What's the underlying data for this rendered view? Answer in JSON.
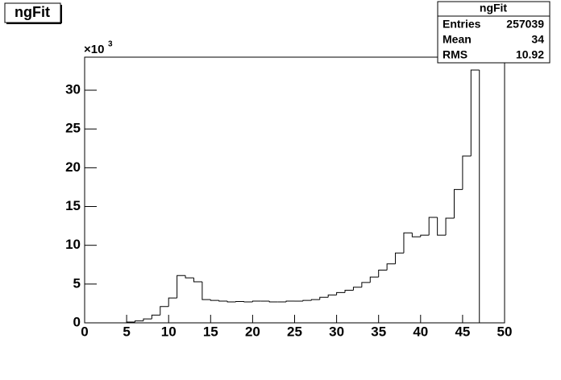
{
  "chart_data": {
    "type": "histogram",
    "title": "ngFit",
    "bins": [
      0,
      1,
      2,
      3,
      4,
      5,
      6,
      7,
      8,
      9,
      10,
      11,
      12,
      13,
      14,
      15,
      16,
      17,
      18,
      19,
      20,
      21,
      22,
      23,
      24,
      25,
      26,
      27,
      28,
      29,
      30,
      31,
      32,
      33,
      34,
      35,
      36,
      37,
      38,
      39,
      40,
      41,
      42,
      43,
      44,
      45,
      46,
      47,
      48,
      49,
      50
    ],
    "values": [
      0,
      0,
      0,
      0,
      0,
      0.1,
      0.25,
      0.5,
      1.0,
      2.1,
      3.2,
      6.1,
      5.8,
      5.3,
      3.0,
      2.9,
      2.8,
      2.7,
      2.75,
      2.7,
      2.8,
      2.8,
      2.7,
      2.7,
      2.8,
      2.8,
      2.9,
      3.0,
      3.3,
      3.6,
      3.9,
      4.2,
      4.6,
      5.2,
      5.9,
      6.8,
      7.6,
      9.0,
      11.6,
      11.1,
      11.3,
      13.6,
      11.3,
      13.5,
      17.2,
      21.5,
      32.6,
      0,
      0,
      0
    ],
    "color": "#000000",
    "xlim": [
      0,
      50
    ],
    "ylim": [
      0,
      34.26
    ],
    "xticks": [
      0,
      5,
      10,
      15,
      20,
      25,
      30,
      35,
      40,
      45,
      50
    ],
    "yticks": [
      0,
      5,
      10,
      15,
      20,
      25,
      30
    ],
    "y_multiplier": {
      "base": "×10",
      "exponent": "3"
    },
    "stats": {
      "title": "ngFit",
      "rows": [
        [
          "Entries",
          "257039"
        ],
        [
          "Mean",
          "34"
        ],
        [
          "RMS",
          "10.92"
        ]
      ]
    }
  }
}
